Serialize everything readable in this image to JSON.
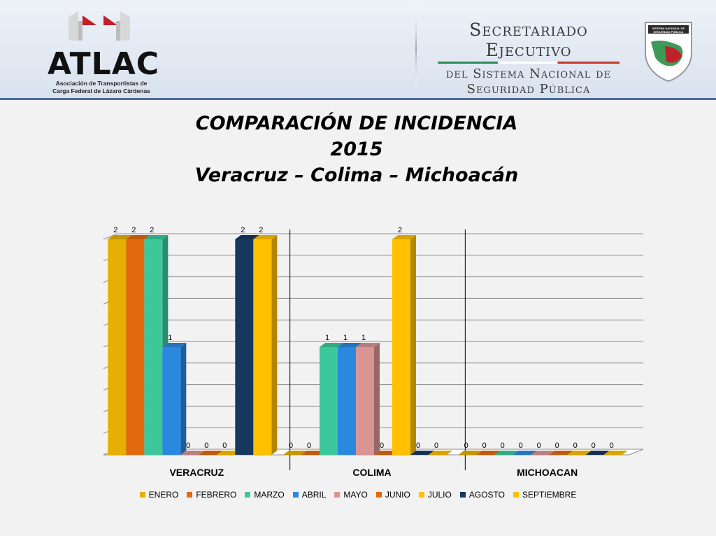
{
  "header": {
    "left_logo": {
      "name": "ATLAC",
      "subtitle_line1": "Asociación de Transportistas de",
      "subtitle_line2": "Carga Federal de Lázaro Cárdenas"
    },
    "right_logo": {
      "line1": "Secretariado Ejecutivo",
      "line2": "del Sistema Nacional de",
      "line3": "Seguridad Pública",
      "shield_text": "SISTEMA NACIONAL DE SEGURIDAD PÚBLICA"
    }
  },
  "title": {
    "line1": "COMPARACIÓN DE INCIDENCIA",
    "line2": "2015",
    "line3": "Veracruz – Colima – Michoacán"
  },
  "chart_data": {
    "type": "bar",
    "categories": [
      "VERACRUZ",
      "COLIMA",
      "MICHOACAN"
    ],
    "ylim": [
      0,
      2
    ],
    "grid": true,
    "legend_placement": "bottom",
    "series": [
      {
        "name": "ENERO",
        "color": "#e6b000",
        "values": [
          2,
          0,
          0
        ]
      },
      {
        "name": "FEBRERO",
        "color": "#e3690e",
        "values": [
          2,
          0,
          0
        ]
      },
      {
        "name": "MARZO",
        "color": "#3cc89a",
        "values": [
          2,
          1,
          0
        ]
      },
      {
        "name": "ABRIL",
        "color": "#2a88e0",
        "values": [
          1,
          1,
          0
        ]
      },
      {
        "name": "MAYO",
        "color": "#d99594",
        "values": [
          0,
          1,
          0
        ]
      },
      {
        "name": "JUNIO",
        "color": "#e3690e",
        "values": [
          0,
          0,
          0
        ]
      },
      {
        "name": "JULIO",
        "color": "#ffc000",
        "values": [
          0,
          2,
          0
        ]
      },
      {
        "name": "AGOSTO",
        "color": "#17375e",
        "values": [
          2,
          0,
          0
        ]
      },
      {
        "name": "SEPTIEMBRE",
        "color": "#ffc000",
        "values": [
          2,
          0,
          0
        ]
      }
    ]
  }
}
